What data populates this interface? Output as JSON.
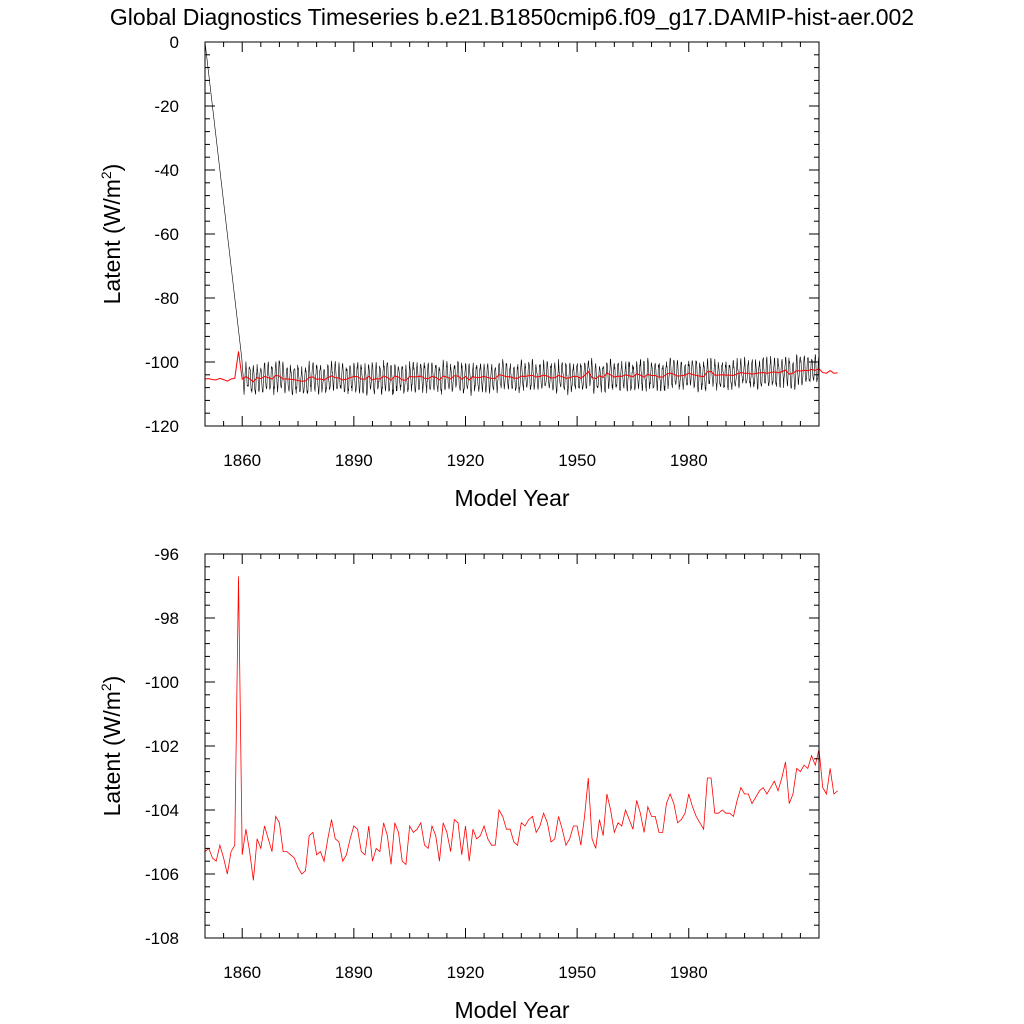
{
  "figure": {
    "title": "Global Diagnostics Timeseries b.e21.B1850cmip6.f09_g17.DAMIP-hist-aer.002"
  },
  "chart_data": [
    {
      "type": "line",
      "xlabel": "Model Year",
      "ylabel_text": "Latent (W/m",
      "ylabel_sup": "2",
      "ylabel_close": ")",
      "xlim": [
        1850,
        2015
      ],
      "ylim": [
        -120,
        0
      ],
      "xticks": [
        "1860",
        "1890",
        "1920",
        "1950",
        "1980"
      ],
      "yticks": [
        "0",
        "-20",
        "-40",
        "-60",
        "-80",
        "-100",
        "-120"
      ],
      "grid": false,
      "series": [
        {
          "role": "monthly",
          "color": "#000000",
          "note": "monthly values start at 0 in 1850, then oscillate about -104 with an amplitude of about 4"
        },
        {
          "role": "annual",
          "color": "#ff0000"
        }
      ]
    },
    {
      "type": "line",
      "xlabel": "Model Year",
      "ylabel_text": "Latent (W/m",
      "ylabel_sup": "2",
      "ylabel_close": ")",
      "xlim": [
        1850,
        2015
      ],
      "ylim": [
        -108,
        -96
      ],
      "xticks": [
        "1860",
        "1890",
        "1920",
        "1950",
        "1980"
      ],
      "yticks": [
        "-96",
        "-98",
        "-100",
        "-102",
        "-104",
        "-106",
        "-108"
      ],
      "grid": false,
      "series": [
        {
          "role": "annual",
          "color": "#ff0000",
          "x_start": 1850,
          "x_step": 1,
          "values": [
            -105.3,
            -105.2,
            -105.5,
            -105.6,
            -105.1,
            -105.5,
            -106.0,
            -105.3,
            -105.1,
            -96.7,
            -105.4,
            -104.6,
            -105.3,
            -106.2,
            -104.9,
            -105.2,
            -104.5,
            -104.9,
            -105.3,
            -104.2,
            -104.4,
            -105.3,
            -105.3,
            -105.4,
            -105.5,
            -105.8,
            -106.0,
            -105.9,
            -104.8,
            -104.7,
            -105.4,
            -105.3,
            -105.6,
            -104.9,
            -104.3,
            -104.9,
            -105.0,
            -105.6,
            -105.4,
            -104.9,
            -104.5,
            -104.6,
            -105.3,
            -105.4,
            -104.5,
            -105.6,
            -105.2,
            -105.3,
            -104.4,
            -104.8,
            -105.7,
            -104.4,
            -104.7,
            -105.6,
            -105.7,
            -104.5,
            -104.7,
            -104.6,
            -104.4,
            -105.1,
            -105.2,
            -104.5,
            -104.8,
            -105.6,
            -104.4,
            -104.7,
            -105.3,
            -104.3,
            -104.4,
            -105.4,
            -104.5,
            -105.6,
            -104.6,
            -104.9,
            -104.8,
            -104.5,
            -104.9,
            -105.1,
            -105.1,
            -104.0,
            -104.2,
            -104.6,
            -104.6,
            -105.0,
            -105.1,
            -104.4,
            -104.5,
            -104.3,
            -104.2,
            -104.7,
            -104.5,
            -104.1,
            -104.4,
            -105.0,
            -104.9,
            -104.2,
            -104.6,
            -105.1,
            -104.9,
            -104.5,
            -104.5,
            -105.1,
            -104.2,
            -103.0,
            -104.9,
            -105.2,
            -104.3,
            -104.8,
            -103.5,
            -104.0,
            -104.7,
            -104.4,
            -104.5,
            -104.0,
            -104.3,
            -104.6,
            -103.7,
            -104.1,
            -104.7,
            -103.9,
            -104.2,
            -104.2,
            -104.7,
            -104.7,
            -103.8,
            -103.5,
            -103.8,
            -104.4,
            -104.3,
            -104.1,
            -103.5,
            -103.9,
            -104.2,
            -104.4,
            -104.6,
            -103.0,
            -103.0,
            -104.1,
            -104.1,
            -104.0,
            -104.1,
            -104.1,
            -104.2,
            -103.7,
            -103.3,
            -103.5,
            -103.5,
            -103.8,
            -103.6,
            -103.4,
            -103.3,
            -103.5,
            -103.3,
            -103.1,
            -103.4,
            -103.0,
            -102.5,
            -103.8,
            -103.5,
            -102.7,
            -102.8,
            -102.6,
            -102.7,
            -102.3,
            -102.6,
            -102.1,
            -103.3,
            -103.5,
            -102.7,
            -103.5,
            -103.4
          ]
        }
      ]
    }
  ]
}
